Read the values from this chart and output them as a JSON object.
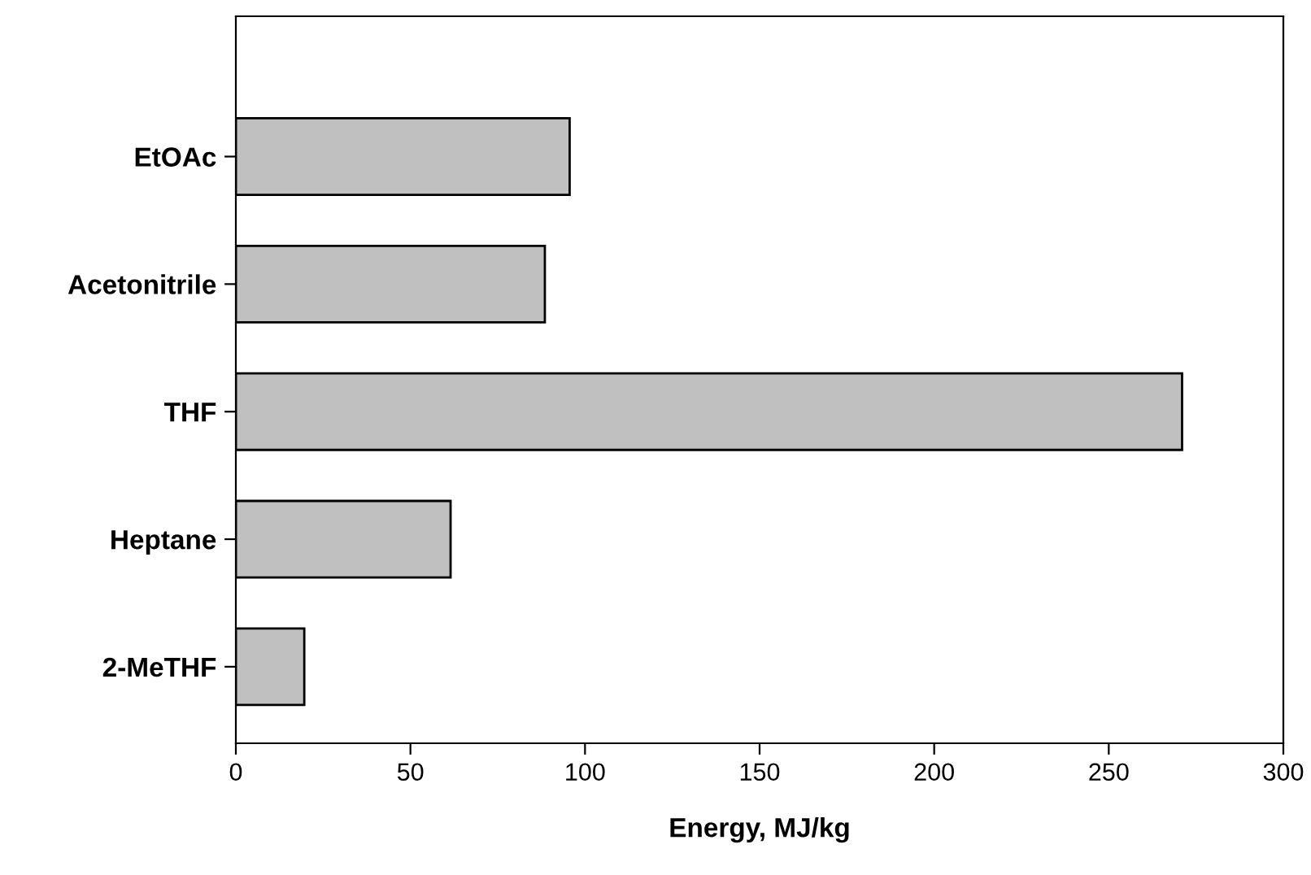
{
  "chart_data": {
    "type": "bar",
    "orientation": "horizontal",
    "xlabel": "Energy, MJ/kg",
    "categories": [
      "EtOAc",
      "Acetonitrile",
      "THF",
      "Heptane",
      "2-MeTHF"
    ],
    "values": [
      95.6,
      88.5,
      271,
      61.5,
      19.6
    ],
    "color": "#c0c0c0",
    "xlim": [
      0,
      300
    ],
    "xticks": [
      0,
      50,
      100,
      150,
      200,
      250,
      300
    ],
    "grid": false
  }
}
